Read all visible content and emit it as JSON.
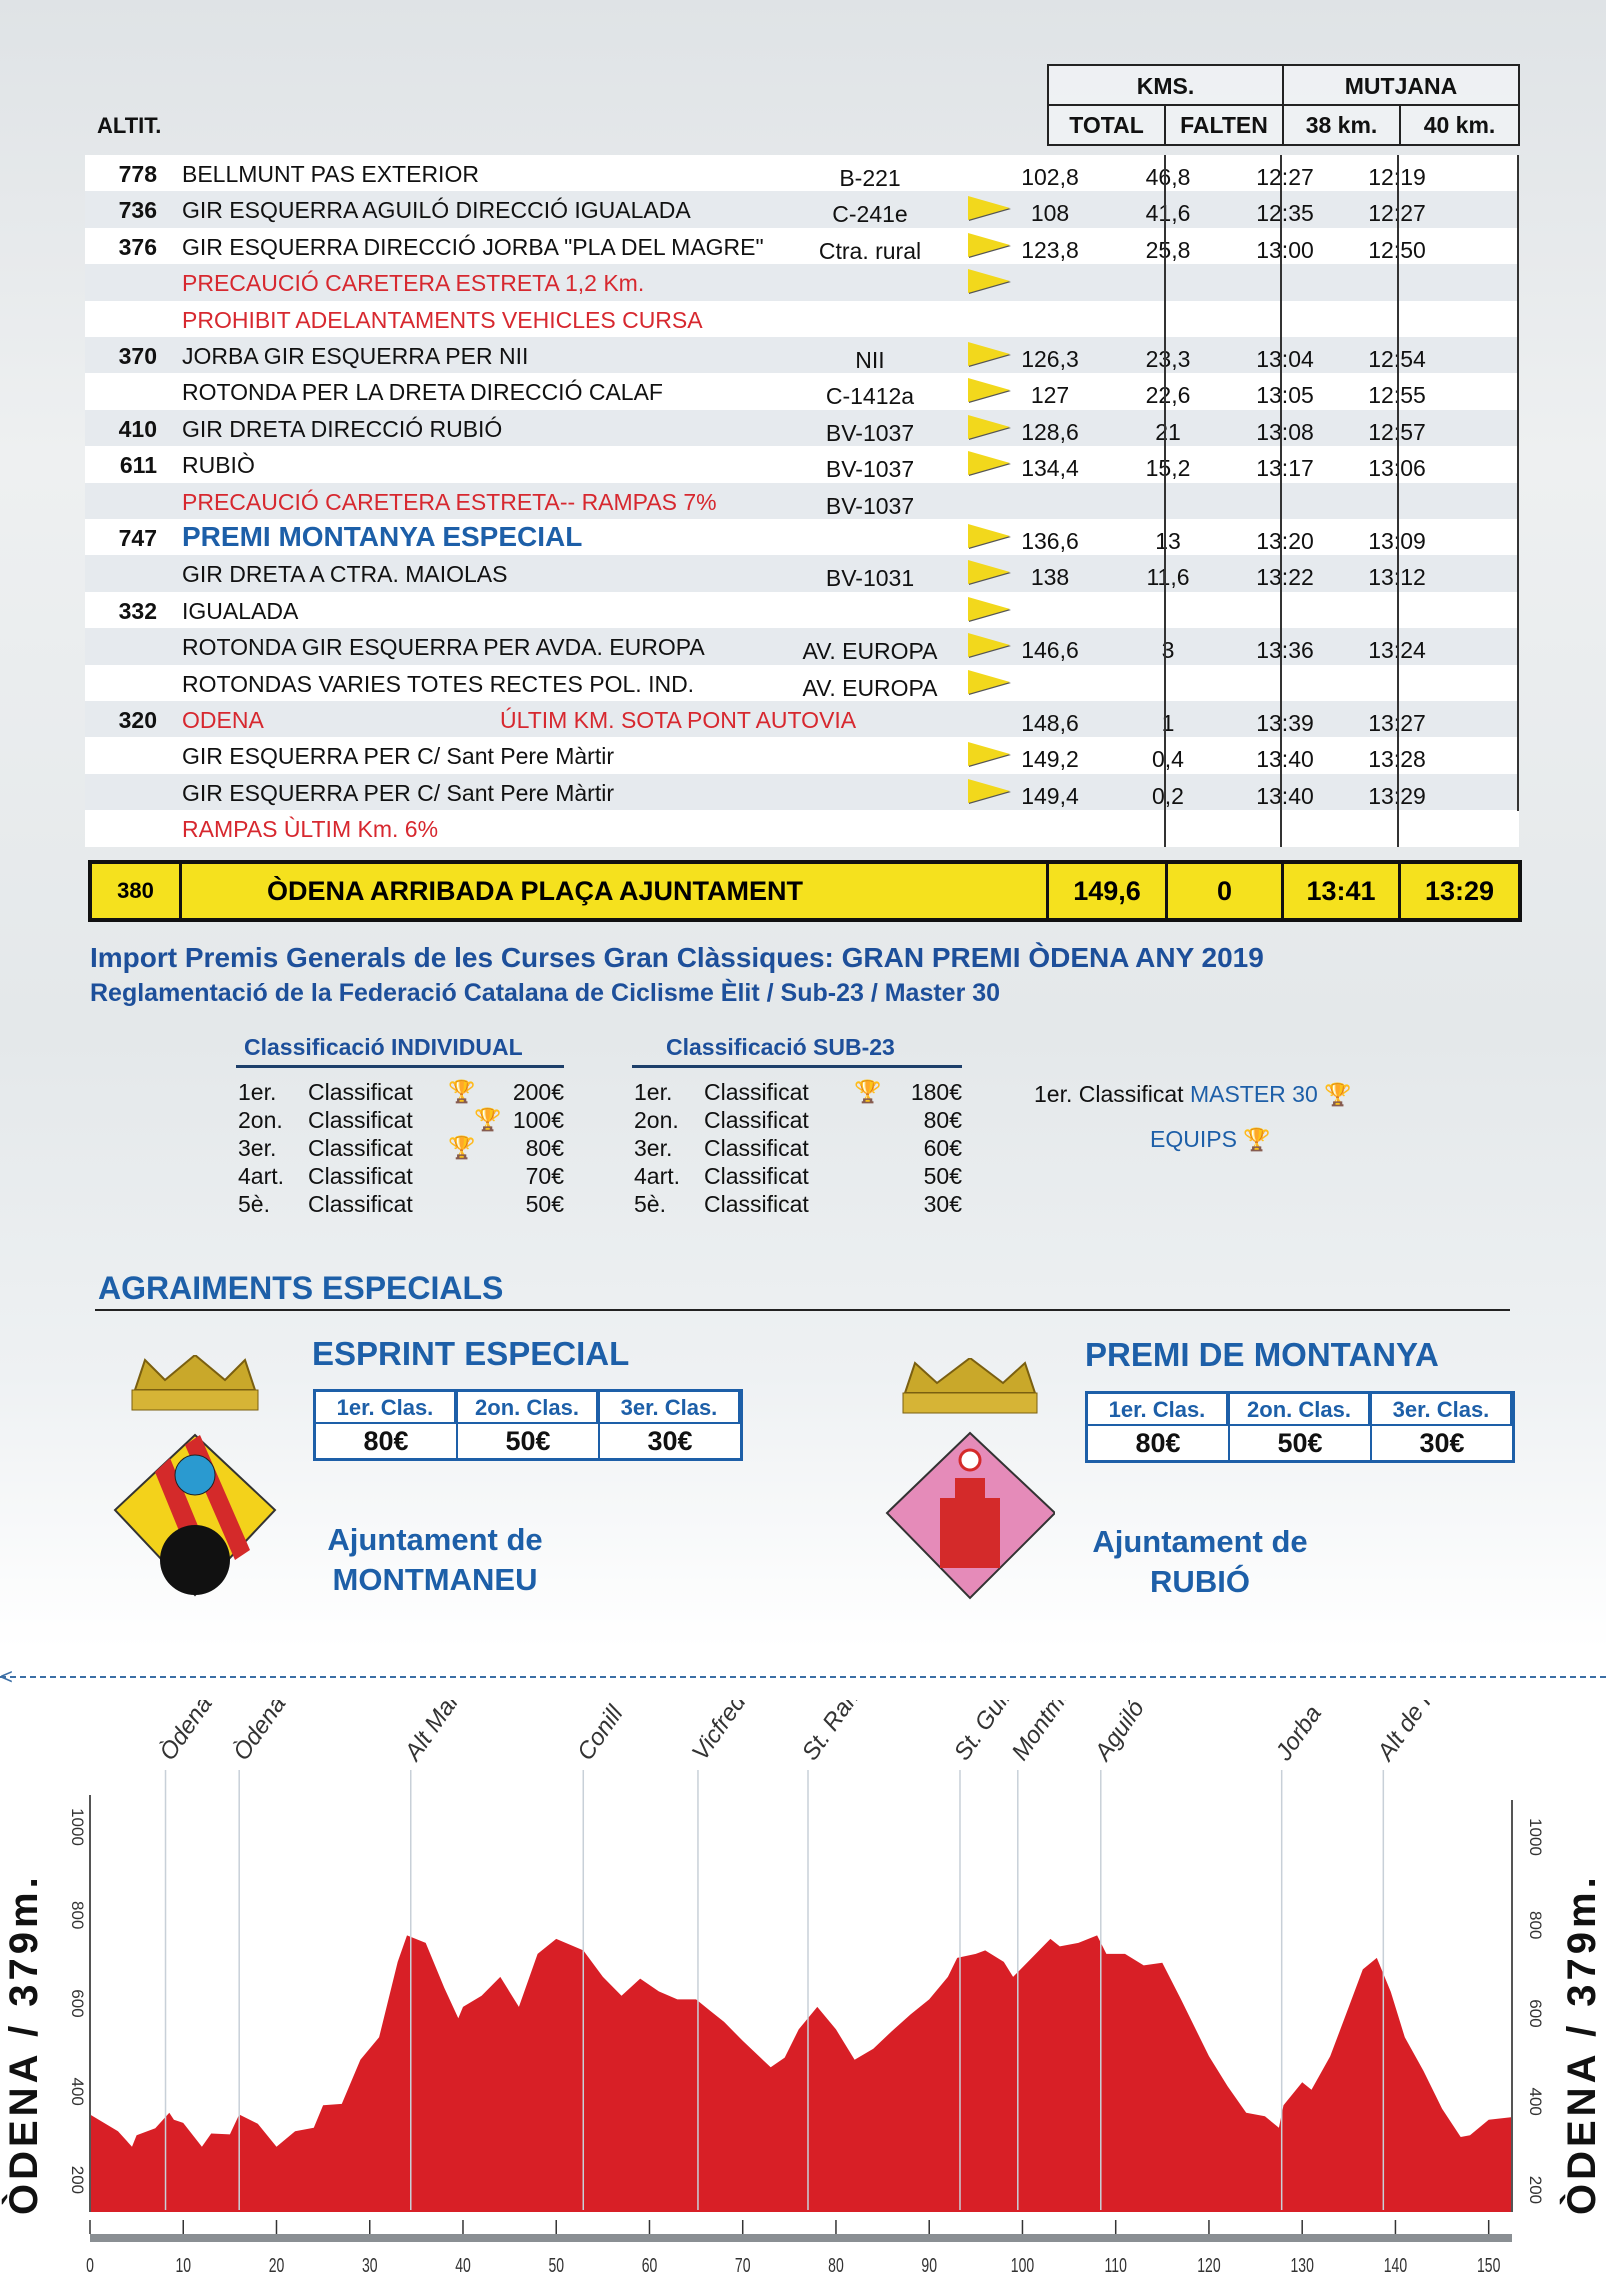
{
  "table": {
    "altit_label": "ALTIT.",
    "kms_label": "KMS.",
    "mutjana_label": "MUTJANA",
    "total_label": "TOTAL",
    "falten_label": "FALTEN",
    "s38_label": "38 km.",
    "s40_label": "40 km.",
    "arrow_color": "#f2d81c",
    "rows": [
      {
        "alt": "778",
        "text": "BELLMUNT PAS EXTERIOR",
        "style": "normal",
        "road": "B-221",
        "arrow": false,
        "total": "102,8",
        "falten": "46,8",
        "t38": "12:27",
        "t40": "12:19"
      },
      {
        "alt": "736",
        "text": "GIR ESQUERRA AGUILÓ  DIRECCIÓ IGUALADA",
        "style": "normal",
        "road": "C-241e",
        "arrow": true,
        "total": "108",
        "falten": "41,6",
        "t38": "12:35",
        "t40": "12:27"
      },
      {
        "alt": "376",
        "text": "GIR ESQUERRA DIRECCIÓ JORBA \"PLA DEL MAGRE\"",
        "style": "normal",
        "road": "Ctra. rural",
        "arrow": true,
        "total": "123,8",
        "falten": "25,8",
        "t38": "13:00",
        "t40": "12:50"
      },
      {
        "alt": "",
        "text": "PRECAUCIÓ CARETERA ESTRETA    1,2 Km.",
        "style": "red",
        "road": "",
        "arrow": true,
        "total": "",
        "falten": "",
        "t38": "",
        "t40": ""
      },
      {
        "alt": "",
        "text": "PROHIBIT ADELANTAMENTS VEHICLES CURSA",
        "style": "red",
        "road": "",
        "arrow": false,
        "total": "",
        "falten": "",
        "t38": "",
        "t40": ""
      },
      {
        "alt": "370",
        "text": "JORBA GIR ESQUERRA PER NII",
        "style": "normal",
        "road": "NII",
        "arrow": true,
        "total": "126,3",
        "falten": "23,3",
        "t38": "13:04",
        "t40": "12:54"
      },
      {
        "alt": "",
        "text": "ROTONDA PER LA DRETA DIRECCIÓ CALAF",
        "style": "normal",
        "road": "C-1412a",
        "arrow": true,
        "total": "127",
        "falten": "22,6",
        "t38": "13:05",
        "t40": "12:55"
      },
      {
        "alt": "410",
        "text": "GIR DRETA DIRECCIÓ RUBIÓ",
        "style": "normal",
        "road": "BV-1037",
        "arrow": true,
        "total": "128,6",
        "falten": "21",
        "t38": "13:08",
        "t40": "12:57"
      },
      {
        "alt": "611",
        "text": "RUBIÒ",
        "style": "normal",
        "road": "BV-1037",
        "arrow": true,
        "total": "134,4",
        "falten": "15,2",
        "t38": "13:17",
        "t40": "13:06"
      },
      {
        "alt": "",
        "text": "PRECAUCIÓ CARETERA ESTRETA-- RAMPAS  7%",
        "style": "red",
        "road": "BV-1037",
        "arrow": false,
        "total": "",
        "falten": "",
        "t38": "",
        "t40": ""
      },
      {
        "alt": "747",
        "text": "PREMI MONTANYA ESPECIAL",
        "style": "blue",
        "road": "",
        "arrow": true,
        "total": "136,6",
        "falten": "13",
        "t38": "13:20",
        "t40": "13:09"
      },
      {
        "alt": "",
        "text": "GIR DRETA A CTRA.  MAIOLAS",
        "style": "normal",
        "road": "BV-1031",
        "arrow": true,
        "total": "138",
        "falten": "11,6",
        "t38": "13:22",
        "t40": "13:12"
      },
      {
        "alt": "332",
        "text": "IGUALADA",
        "style": "normal",
        "road": "",
        "arrow": true,
        "total": "",
        "falten": "",
        "t38": "",
        "t40": ""
      },
      {
        "alt": "",
        "text": "ROTONDA GIR ESQUERRA PER AVDA. EUROPA",
        "style": "normal",
        "road": "AV. EUROPA",
        "arrow": true,
        "total": "146,6",
        "falten": "3",
        "t38": "13:36",
        "t40": "13:24"
      },
      {
        "alt": "",
        "text": "ROTONDAS VARIES TOTES RECTES  POL. IND.",
        "style": "normal",
        "road": "AV. EUROPA",
        "arrow": true,
        "total": "",
        "falten": "",
        "t38": "",
        "t40": ""
      },
      {
        "alt": "320",
        "text": "ODENA",
        "style": "red",
        "note": "ÚLTIM KM. SOTA PONT AUTOVIA",
        "road": "",
        "arrow": false,
        "total": "148,6",
        "falten": "1",
        "t38": "13:39",
        "t40": "13:27"
      },
      {
        "alt": "",
        "text": "GIR ESQUERRA PER C/ Sant Pere Màrtir",
        "style": "normal",
        "road": "",
        "arrow": true,
        "total": "149,2",
        "falten": "0,4",
        "t38": "13:40",
        "t40": "13:28"
      },
      {
        "alt": "",
        "text": "GIR ESQUERRA PER C/ Sant Pere Màrtir",
        "style": "normal",
        "road": "",
        "arrow": true,
        "total": "149,4",
        "falten": "0,2",
        "t38": "13:40",
        "t40": "13:29"
      },
      {
        "alt": "",
        "text": "RAMPAS ÙLTIM Km. 6%",
        "style": "red",
        "road": "",
        "arrow": false,
        "total": "",
        "falten": "",
        "t38": "",
        "t40": ""
      }
    ],
    "finish": {
      "alt": "380",
      "text": "ÒDENA ARRIBADA   PLAÇA AJUNTAMENT",
      "total": "149,6",
      "falten": "0",
      "t38": "13:41",
      "t40": "13:29",
      "color": "#f5e11e"
    }
  },
  "prizes": {
    "title1": "Import Premis Generals de les Curses Gran Clàssiques:  GRAN PREMI ÒDENA ANY 2019",
    "title2": "Reglamentació de la Federació Catalana de Ciclisme  Èlit / Sub-23 / Master 30",
    "individual": {
      "heading": "Classificació INDIVIDUAL",
      "items": [
        {
          "pos": "1er.",
          "label": "Classificat",
          "amount": "200€",
          "trophy": true
        },
        {
          "pos": "2on.",
          "label": "Classificat",
          "amount": "100€",
          "trophy": true
        },
        {
          "pos": "3er.",
          "label": "Classificat",
          "amount": "80€",
          "trophy": true
        },
        {
          "pos": "4art.",
          "label": "Classificat",
          "amount": "70€",
          "trophy": false
        },
        {
          "pos": "5è.",
          "label": "Classificat",
          "amount": "50€",
          "trophy": false
        }
      ]
    },
    "sub23": {
      "heading": "Classificació SUB-23",
      "items": [
        {
          "pos": "1er.",
          "label": "Classificat",
          "amount": "180€",
          "trophy": true
        },
        {
          "pos": "2on.",
          "label": "Classificat",
          "amount": "80€",
          "trophy": false
        },
        {
          "pos": "3er.",
          "label": "Classificat",
          "amount": "60€",
          "trophy": false
        },
        {
          "pos": "4art.",
          "label": "Classificat",
          "amount": "50€",
          "trophy": false
        },
        {
          "pos": "5è.",
          "label": "Classificat",
          "amount": "30€",
          "trophy": false
        }
      ]
    },
    "master_prefix": "1er. Classificat",
    "master_label": "MASTER 30",
    "teams_label": "EQUIPS"
  },
  "thanks": {
    "heading": "AGRAIMENTS ESPECIALS",
    "sponsors": [
      {
        "prize": "ESPRINT ESPECIAL",
        "cols": [
          "1er. Clas.",
          "2on. Clas.",
          "3er. Clas."
        ],
        "values": [
          "80€",
          "50€",
          "30€"
        ],
        "org_line1": "Ajuntament de",
        "org_line2": "MONTMANEU"
      },
      {
        "prize": "PREMI DE MONTANYA",
        "cols": [
          "1er. Clas.",
          "2on. Clas.",
          "3er. Clas."
        ],
        "values": [
          "80€",
          "50€",
          "30€"
        ],
        "org_line1": "Ajuntament de",
        "org_line2": "RUBIÓ"
      }
    ]
  },
  "chart_data": {
    "type": "area",
    "side_label": "ÒDENA / 379m.",
    "fill_color": "#d81f26",
    "xlim": [
      0,
      152.5
    ],
    "ylim": [
      150,
      1000
    ],
    "x_ticks": [
      "0",
      "10",
      "20",
      "30",
      "40",
      "50",
      "60",
      "70",
      "80",
      "90",
      "100",
      "110",
      "120",
      "130",
      "140",
      "150"
    ],
    "y_ticks": [
      "200",
      "400",
      "600",
      "800",
      "1000"
    ],
    "landmarks": [
      {
        "km": 8.1,
        "name": "Òdena"
      },
      {
        "km": 16,
        "name": "Òdena"
      },
      {
        "km": 34.4,
        "name": "Alt Maioles"
      },
      {
        "km": 52.9,
        "name": "Conill"
      },
      {
        "km": 65.2,
        "name": "Vicfred"
      },
      {
        "km": 77,
        "name": "St. Ramon"
      },
      {
        "km": 93.3,
        "name": "St. Guim de Freixenet"
      },
      {
        "km": 99.5,
        "name": "Montmaneu"
      },
      {
        "km": 108.4,
        "name": "Aguiló"
      },
      {
        "km": 127.8,
        "name": "Jorba"
      },
      {
        "km": 138.7,
        "name": "Alt de Rubió"
      }
    ],
    "profile": [
      [
        0,
        371
      ],
      [
        3,
        333
      ],
      [
        4.5,
        298
      ],
      [
        5,
        324
      ],
      [
        7,
        340
      ],
      [
        8.5,
        375
      ],
      [
        9,
        359
      ],
      [
        10,
        352
      ],
      [
        12,
        298
      ],
      [
        13,
        328
      ],
      [
        15,
        326
      ],
      [
        16,
        371
      ],
      [
        18,
        350
      ],
      [
        20,
        298
      ],
      [
        22,
        333
      ],
      [
        24,
        341
      ],
      [
        25,
        392
      ],
      [
        27,
        395
      ],
      [
        29,
        495
      ],
      [
        31,
        546
      ],
      [
        33,
        717
      ],
      [
        34,
        777
      ],
      [
        36,
        760
      ],
      [
        38,
        658
      ],
      [
        39.5,
        589
      ],
      [
        40,
        615
      ],
      [
        42,
        640
      ],
      [
        44,
        683
      ],
      [
        46,
        615
      ],
      [
        48,
        735
      ],
      [
        50,
        769
      ],
      [
        52.9,
        743
      ],
      [
        55,
        683
      ],
      [
        57,
        640
      ],
      [
        59,
        679
      ],
      [
        61,
        650
      ],
      [
        63,
        632
      ],
      [
        65,
        632
      ],
      [
        66.5,
        606
      ],
      [
        68,
        581
      ],
      [
        70,
        538
      ],
      [
        73,
        478
      ],
      [
        74.5,
        500
      ],
      [
        76,
        564
      ],
      [
        78,
        615
      ],
      [
        80,
        564
      ],
      [
        82,
        495
      ],
      [
        84,
        520
      ],
      [
        86,
        560
      ],
      [
        88,
        598
      ],
      [
        90,
        632
      ],
      [
        92,
        683
      ],
      [
        93,
        726
      ],
      [
        95,
        735
      ],
      [
        96,
        743
      ],
      [
        98,
        717
      ],
      [
        99,
        683
      ],
      [
        101,
        726
      ],
      [
        103,
        769
      ],
      [
        104,
        752
      ],
      [
        106,
        760
      ],
      [
        108,
        777
      ],
      [
        109,
        735
      ],
      [
        111,
        735
      ],
      [
        113,
        709
      ],
      [
        115,
        715
      ],
      [
        117,
        632
      ],
      [
        120,
        503
      ],
      [
        122,
        435
      ],
      [
        124,
        375
      ],
      [
        126,
        367
      ],
      [
        127.5,
        341
      ],
      [
        128,
        392
      ],
      [
        130,
        444
      ],
      [
        131,
        427
      ],
      [
        133,
        503
      ],
      [
        135,
        615
      ],
      [
        136.5,
        700
      ],
      [
        138,
        726
      ],
      [
        139.5,
        649
      ],
      [
        141,
        546
      ],
      [
        143,
        470
      ],
      [
        145,
        384
      ],
      [
        147,
        320
      ],
      [
        148,
        324
      ],
      [
        150,
        359
      ],
      [
        152.5,
        365
      ]
    ]
  }
}
